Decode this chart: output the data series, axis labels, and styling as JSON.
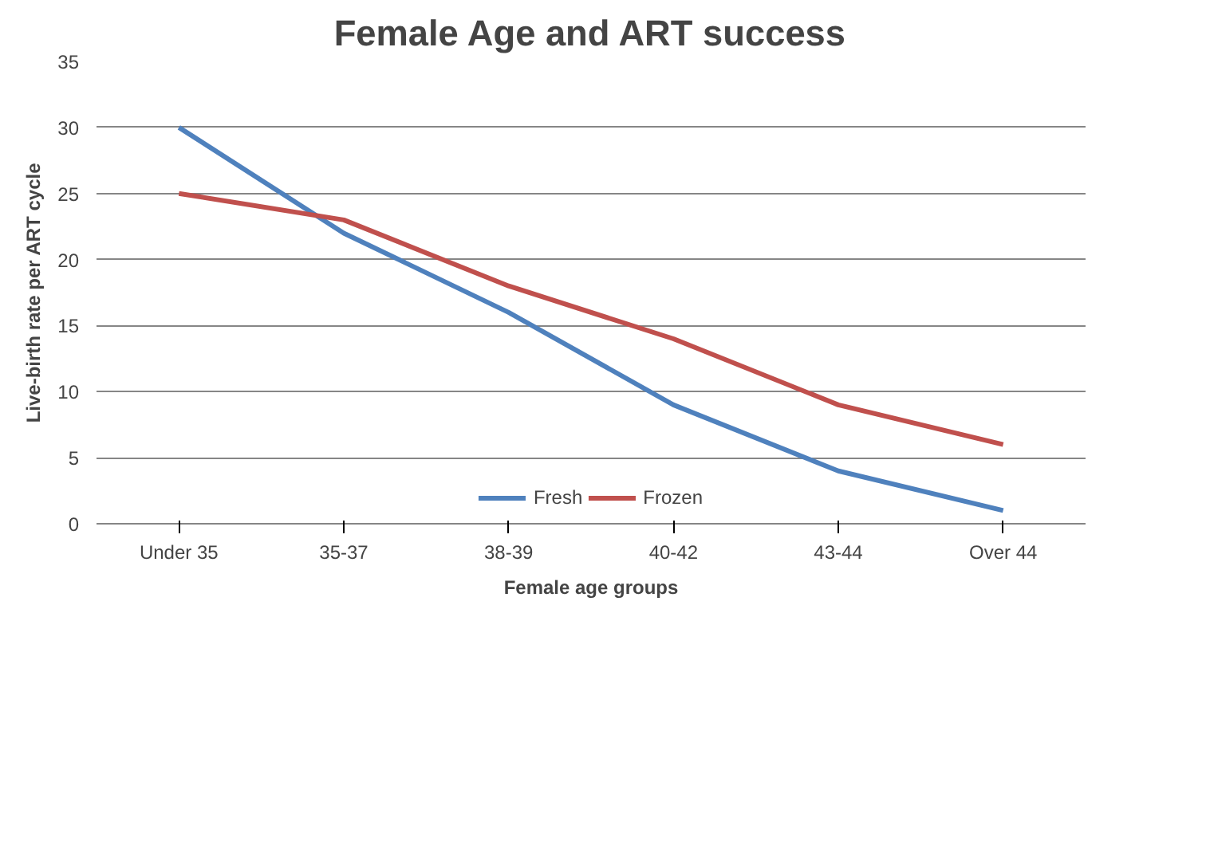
{
  "chart_data": {
    "type": "line",
    "title": "Female Age and ART success",
    "xlabel": "Female age groups",
    "ylabel": "Live-birth rate per ART cycle",
    "categories": [
      "Under 35",
      "35-37",
      "38-39",
      "40-42",
      "43-44",
      "Over 44"
    ],
    "series": [
      {
        "name": "Fresh",
        "color": "#4f81bd",
        "values": [
          30,
          22,
          16,
          9,
          4,
          1
        ]
      },
      {
        "name": "Frozen",
        "color": "#c0504d",
        "values": [
          25,
          23,
          18,
          14,
          9,
          6
        ]
      }
    ],
    "ylim": [
      0,
      35
    ],
    "yticks": [
      0,
      5,
      10,
      15,
      20,
      25,
      30,
      35
    ],
    "grid": "y",
    "legend": "bottom",
    "marker": "none",
    "line_style": "solid"
  }
}
